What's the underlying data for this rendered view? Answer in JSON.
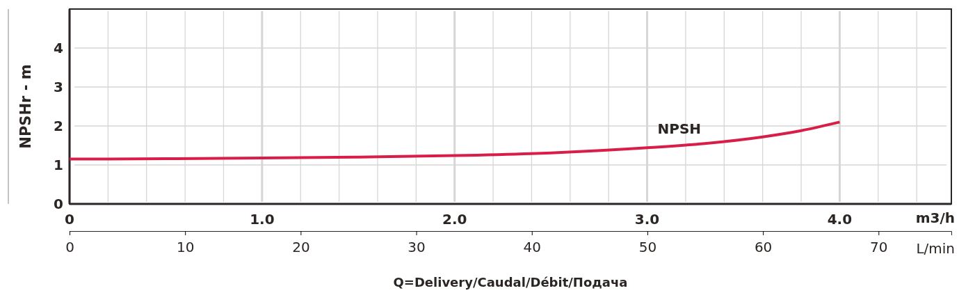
{
  "chart_data": {
    "type": "line",
    "ylabel": "NPSHr - m",
    "xlabel": "m3/h",
    "x2label": "L/min",
    "annotations": [
      "Q=Delivery/Caudal/Débit/Подача"
    ],
    "xlim": [
      0,
      4.58
    ],
    "xticks": [
      0,
      {
        "value": 0.2,
        "label": null
      },
      {
        "value": 0.4,
        "label": null
      },
      {
        "value": 0.6,
        "label": null
      },
      {
        "value": 0.8,
        "label": null
      },
      {
        "value": 1,
        "label": "1.0"
      },
      {
        "value": 1.2,
        "label": null
      },
      {
        "value": 1.4,
        "label": null
      },
      {
        "value": 1.6,
        "label": null
      },
      {
        "value": 1.8,
        "label": null
      },
      {
        "value": 2,
        "label": "2.0"
      },
      {
        "value": 2.2,
        "label": null
      },
      {
        "value": 2.4,
        "label": null
      },
      {
        "value": 2.6,
        "label": null
      },
      {
        "value": 2.8,
        "label": null
      },
      {
        "value": 3,
        "label": "3.0"
      },
      {
        "value": 3.2,
        "label": null
      },
      {
        "value": 3.4,
        "label": null
      },
      {
        "value": 3.6,
        "label": null
      },
      {
        "value": 3.8,
        "label": null
      },
      {
        "value": 4,
        "label": "4.0"
      },
      {
        "value": 4.2,
        "label": null
      },
      {
        "value": 4.4,
        "label": null
      }
    ],
    "x2lim": [
      0,
      76.3
    ],
    "x2ticks": [
      0,
      10,
      20,
      30,
      40,
      50,
      60,
      70
    ],
    "ylim": [
      0,
      5
    ],
    "yticks": [
      0,
      1,
      2,
      3,
      4
    ],
    "grid": true,
    "legend": false,
    "marker": "none",
    "line_style": "solid",
    "x": [
      0,
      0.5,
      1,
      1.5,
      2,
      2.5,
      3,
      3.3,
      3.6,
      3.8,
      4
    ],
    "series": [
      {
        "name": "NPSH",
        "color": "#d81e48",
        "values": [
          1.15,
          1.16,
          1.18,
          1.2,
          1.24,
          1.31,
          1.44,
          1.55,
          1.72,
          1.88,
          2.1
        ]
      }
    ]
  }
}
